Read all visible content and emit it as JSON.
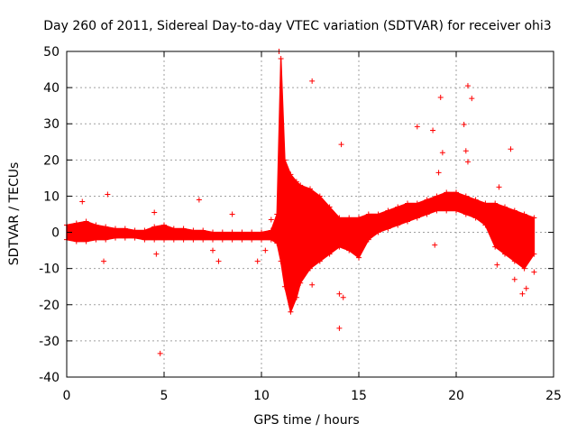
{
  "chart_data": {
    "type": "scatter",
    "title": "Day 260 of 2011, Sidereal Day-to-day VTEC variation (SDTVAR) for receiver ohi3",
    "xlabel": "GPS time / hours",
    "ylabel": "SDTVAR / TECUs",
    "xlim": [
      0,
      25
    ],
    "ylim": [
      -40,
      50
    ],
    "xticks": [
      0,
      5,
      10,
      15,
      20,
      25
    ],
    "yticks": [
      -40,
      -30,
      -20,
      -10,
      0,
      10,
      20,
      30,
      40,
      50
    ],
    "grid": true,
    "marker": "+",
    "series": [
      {
        "name": "SDTVAR",
        "color": "#ff0000",
        "envelope": {
          "x": [
            0.0,
            0.5,
            1.0,
            1.5,
            2.0,
            2.5,
            3.0,
            3.5,
            4.0,
            4.5,
            5.0,
            5.5,
            6.0,
            6.5,
            7.0,
            7.5,
            8.0,
            8.5,
            9.0,
            9.5,
            10.0,
            10.5,
            10.8,
            11.0,
            11.2,
            11.5,
            11.8,
            12.0,
            12.5,
            13.0,
            13.5,
            14.0,
            14.5,
            15.0,
            15.5,
            16.0,
            16.5,
            17.0,
            17.5,
            18.0,
            18.5,
            19.0,
            19.5,
            20.0,
            20.5,
            21.0,
            21.5,
            22.0,
            22.5,
            23.0,
            23.5,
            24.0
          ],
          "upper": [
            2,
            2.5,
            3,
            2,
            1.5,
            1,
            1,
            0.5,
            0.5,
            1.5,
            2,
            1,
            1,
            0.5,
            0.5,
            0,
            0,
            0,
            0,
            0,
            0,
            0.5,
            5,
            48,
            20,
            16,
            14,
            13,
            12,
            10,
            7,
            4,
            4,
            4,
            5,
            5,
            6,
            7,
            8,
            8,
            9,
            10,
            11,
            11,
            10,
            9,
            8,
            8,
            7,
            6,
            5,
            4
          ],
          "lower": [
            -2,
            -2.5,
            -2.5,
            -2,
            -2,
            -1.5,
            -1.5,
            -1.5,
            -2,
            -2,
            -2,
            -2,
            -2,
            -2,
            -2,
            -2,
            -2,
            -2,
            -2,
            -2,
            -2,
            -2,
            -3,
            -8,
            -15,
            -22,
            -18,
            -14,
            -10,
            -8,
            -6,
            -4,
            -5,
            -7,
            -2,
            0,
            1,
            2,
            3,
            4,
            5,
            6,
            6,
            6,
            5,
            4,
            2,
            -4,
            -6,
            -8,
            -10,
            -6
          ]
        },
        "outliers": [
          {
            "x": 0.8,
            "y": 8.5
          },
          {
            "x": 2.1,
            "y": 10.5
          },
          {
            "x": 1.9,
            "y": -8
          },
          {
            "x": 4.6,
            "y": -6
          },
          {
            "x": 4.8,
            "y": -33.5
          },
          {
            "x": 4.5,
            "y": 5.5
          },
          {
            "x": 6.8,
            "y": 9
          },
          {
            "x": 7.5,
            "y": -5
          },
          {
            "x": 7.8,
            "y": -8
          },
          {
            "x": 8.5,
            "y": 5
          },
          {
            "x": 9.8,
            "y": -8
          },
          {
            "x": 10.2,
            "y": -5
          },
          {
            "x": 10.5,
            "y": 3.5
          },
          {
            "x": 10.9,
            "y": 50
          },
          {
            "x": 12.6,
            "y": 41.8
          },
          {
            "x": 12.6,
            "y": -14.5
          },
          {
            "x": 14.1,
            "y": 24.3
          },
          {
            "x": 14.0,
            "y": -26.5
          },
          {
            "x": 14.0,
            "y": -17
          },
          {
            "x": 14.2,
            "y": -18
          },
          {
            "x": 18.0,
            "y": 29.2
          },
          {
            "x": 18.8,
            "y": 28.2
          },
          {
            "x": 19.2,
            "y": 37.3
          },
          {
            "x": 19.3,
            "y": 22
          },
          {
            "x": 19.1,
            "y": 16.5
          },
          {
            "x": 18.9,
            "y": -3.5
          },
          {
            "x": 20.6,
            "y": 40.5
          },
          {
            "x": 20.8,
            "y": 37
          },
          {
            "x": 20.4,
            "y": 29.8
          },
          {
            "x": 20.5,
            "y": 22.5
          },
          {
            "x": 20.6,
            "y": 19.5
          },
          {
            "x": 22.8,
            "y": 23
          },
          {
            "x": 22.2,
            "y": 12.5
          },
          {
            "x": 23.6,
            "y": -15.5
          },
          {
            "x": 23.4,
            "y": -17
          },
          {
            "x": 23.0,
            "y": -13
          },
          {
            "x": 22.1,
            "y": -9
          },
          {
            "x": 24.0,
            "y": -11
          }
        ]
      }
    ]
  }
}
